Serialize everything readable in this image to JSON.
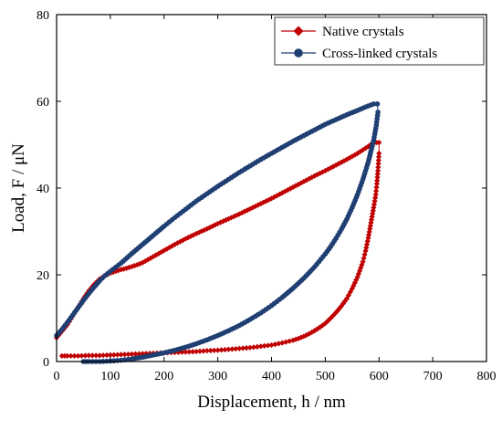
{
  "chart_data": {
    "type": "scatter",
    "xlabel": "Displacement, h / nm",
    "ylabel": "Load, F / μN",
    "xlim": [
      0,
      800
    ],
    "ylim": [
      0,
      80
    ],
    "xticks": [
      0,
      100,
      200,
      300,
      400,
      500,
      600,
      700,
      800
    ],
    "yticks": [
      0,
      20,
      40,
      60,
      80
    ],
    "xtick_labels": [
      "0",
      "100",
      "200",
      "300",
      "400",
      "500",
      "600",
      "700",
      "800"
    ],
    "ytick_labels": [
      "0",
      "20",
      "40",
      "60",
      "80"
    ],
    "grid": false,
    "legend_position": "top-right",
    "series": [
      {
        "name": "Native crystals",
        "color": "#c00000",
        "marker": "diamond",
        "loading": [
          [
            0,
            5.5
          ],
          [
            10,
            7.0
          ],
          [
            20,
            8.5
          ],
          [
            30,
            10.5
          ],
          [
            40,
            12.5
          ],
          [
            50,
            14.5
          ],
          [
            60,
            16.3
          ],
          [
            70,
            17.8
          ],
          [
            80,
            19.0
          ],
          [
            90,
            19.8
          ],
          [
            100,
            20.4
          ],
          [
            110,
            20.8
          ],
          [
            120,
            21.2
          ],
          [
            130,
            21.5
          ],
          [
            140,
            21.9
          ],
          [
            150,
            22.3
          ],
          [
            160,
            22.8
          ],
          [
            170,
            23.5
          ],
          [
            180,
            24.2
          ],
          [
            190,
            24.9
          ],
          [
            200,
            25.6
          ],
          [
            220,
            27.0
          ],
          [
            240,
            28.3
          ],
          [
            260,
            29.5
          ],
          [
            280,
            30.6
          ],
          [
            300,
            31.8
          ],
          [
            320,
            32.9
          ],
          [
            340,
            34.0
          ],
          [
            360,
            35.2
          ],
          [
            380,
            36.4
          ],
          [
            400,
            37.6
          ],
          [
            420,
            38.9
          ],
          [
            440,
            40.2
          ],
          [
            460,
            41.5
          ],
          [
            480,
            42.8
          ],
          [
            500,
            44.0
          ],
          [
            520,
            45.3
          ],
          [
            540,
            46.6
          ],
          [
            560,
            48.0
          ],
          [
            580,
            49.6
          ],
          [
            590,
            50.5
          ],
          [
            600,
            50.5
          ]
        ],
        "unloading": [
          [
            600,
            48.0
          ],
          [
            598,
            44.0
          ],
          [
            596,
            41.0
          ],
          [
            594,
            38.5
          ],
          [
            590,
            35.5
          ],
          [
            585,
            32.0
          ],
          [
            580,
            28.5
          ],
          [
            575,
            25.5
          ],
          [
            570,
            23.0
          ],
          [
            560,
            19.5
          ],
          [
            550,
            16.8
          ],
          [
            540,
            14.5
          ],
          [
            530,
            12.8
          ],
          [
            520,
            11.3
          ],
          [
            510,
            10.0
          ],
          [
            500,
            8.8
          ],
          [
            490,
            7.9
          ],
          [
            480,
            7.1
          ],
          [
            470,
            6.4
          ],
          [
            460,
            5.8
          ],
          [
            450,
            5.3
          ],
          [
            440,
            4.9
          ],
          [
            420,
            4.3
          ],
          [
            400,
            3.8
          ],
          [
            380,
            3.5
          ],
          [
            360,
            3.2
          ],
          [
            340,
            3.0
          ],
          [
            320,
            2.8
          ],
          [
            300,
            2.6
          ],
          [
            280,
            2.5
          ],
          [
            260,
            2.3
          ],
          [
            240,
            2.2
          ],
          [
            220,
            2.1
          ],
          [
            200,
            2.0
          ],
          [
            180,
            1.9
          ],
          [
            160,
            1.8
          ],
          [
            140,
            1.7
          ],
          [
            120,
            1.6
          ],
          [
            100,
            1.5
          ],
          [
            80,
            1.4
          ],
          [
            60,
            1.4
          ],
          [
            40,
            1.3
          ],
          [
            20,
            1.3
          ],
          [
            10,
            1.3
          ]
        ]
      },
      {
        "name": "Cross-linked crystals",
        "color": "#1f3f73",
        "marker": "circle",
        "loading": [
          [
            0,
            6.0
          ],
          [
            10,
            7.4
          ],
          [
            20,
            9.0
          ],
          [
            30,
            10.7
          ],
          [
            40,
            12.4
          ],
          [
            50,
            14.1
          ],
          [
            60,
            15.7
          ],
          [
            70,
            17.2
          ],
          [
            80,
            18.6
          ],
          [
            90,
            19.8
          ],
          [
            100,
            20.8
          ],
          [
            120,
            22.7
          ],
          [
            140,
            24.9
          ],
          [
            160,
            27.0
          ],
          [
            180,
            29.1
          ],
          [
            200,
            31.2
          ],
          [
            220,
            33.2
          ],
          [
            240,
            35.1
          ],
          [
            260,
            37.0
          ],
          [
            280,
            38.7
          ],
          [
            300,
            40.4
          ],
          [
            320,
            42.0
          ],
          [
            340,
            43.6
          ],
          [
            360,
            45.1
          ],
          [
            380,
            46.6
          ],
          [
            400,
            48.0
          ],
          [
            420,
            49.4
          ],
          [
            440,
            50.8
          ],
          [
            460,
            52.1
          ],
          [
            480,
            53.4
          ],
          [
            500,
            54.7
          ],
          [
            520,
            55.8
          ],
          [
            540,
            56.9
          ],
          [
            560,
            57.9
          ],
          [
            575,
            58.7
          ],
          [
            590,
            59.4
          ],
          [
            597,
            59.4
          ]
        ],
        "unloading": [
          [
            598,
            57.5
          ],
          [
            595,
            54.5
          ],
          [
            590,
            51.0
          ],
          [
            585,
            48.5
          ],
          [
            580,
            46.0
          ],
          [
            570,
            42.0
          ],
          [
            560,
            38.5
          ],
          [
            550,
            35.5
          ],
          [
            540,
            32.8
          ],
          [
            530,
            30.5
          ],
          [
            520,
            28.4
          ],
          [
            510,
            26.5
          ],
          [
            500,
            24.8
          ],
          [
            480,
            21.8
          ],
          [
            460,
            19.2
          ],
          [
            440,
            16.9
          ],
          [
            420,
            14.8
          ],
          [
            400,
            12.9
          ],
          [
            380,
            11.2
          ],
          [
            360,
            9.7
          ],
          [
            340,
            8.3
          ],
          [
            320,
            7.1
          ],
          [
            300,
            6.0
          ],
          [
            280,
            5.0
          ],
          [
            260,
            4.1
          ],
          [
            240,
            3.3
          ],
          [
            220,
            2.6
          ],
          [
            200,
            2.0
          ],
          [
            180,
            1.5
          ],
          [
            160,
            1.0
          ],
          [
            140,
            0.6
          ],
          [
            120,
            0.3
          ],
          [
            100,
            0.1
          ],
          [
            80,
            0.0
          ],
          [
            60,
            0.0
          ],
          [
            50,
            0.0
          ]
        ]
      }
    ]
  }
}
